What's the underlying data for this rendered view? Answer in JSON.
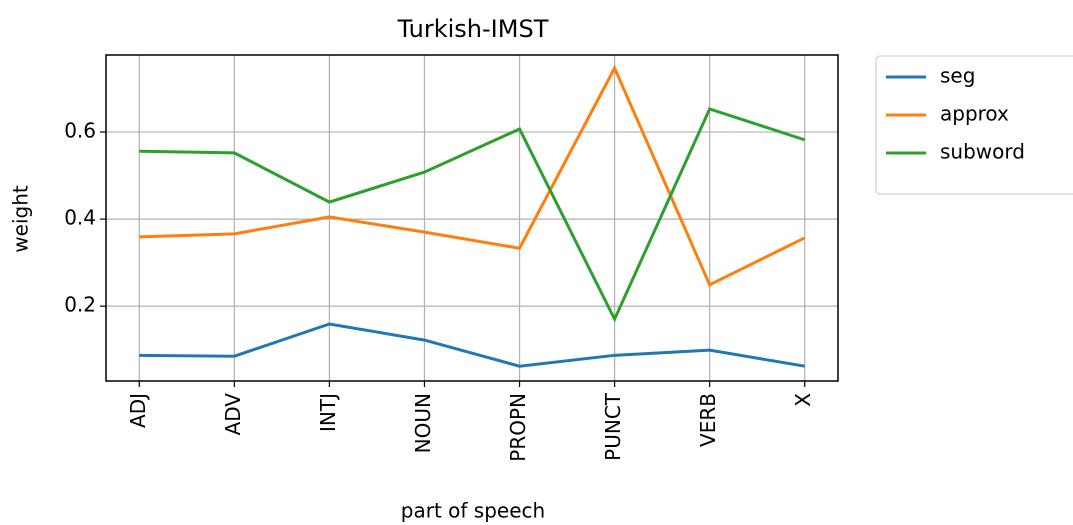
{
  "chart_data": {
    "type": "line",
    "title": "Turkish-IMST",
    "x_label": "part of speech",
    "y_label": "weight",
    "categories": [
      "ADJ",
      "ADV",
      "INTJ",
      "NOUN",
      "PROPN",
      "PUNCT",
      "VERB",
      "X"
    ],
    "series": [
      {
        "name": "seg",
        "color": "#1f77b4",
        "values": [
          0.087,
          0.085,
          0.159,
          0.122,
          0.062,
          0.087,
          0.099,
          0.062
        ]
      },
      {
        "name": "approx",
        "color": "#ff7f0e",
        "values": [
          0.359,
          0.366,
          0.405,
          0.37,
          0.333,
          0.747,
          0.249,
          0.357
        ]
      },
      {
        "name": "subword",
        "color": "#2ca02c",
        "values": [
          0.556,
          0.552,
          0.439,
          0.508,
          0.607,
          0.17,
          0.653,
          0.582
        ]
      }
    ],
    "ylim": [
      0.028,
      0.777
    ],
    "yticks": [
      0.2,
      0.4,
      0.6
    ],
    "grid": true,
    "legend": "outside upper right"
  }
}
